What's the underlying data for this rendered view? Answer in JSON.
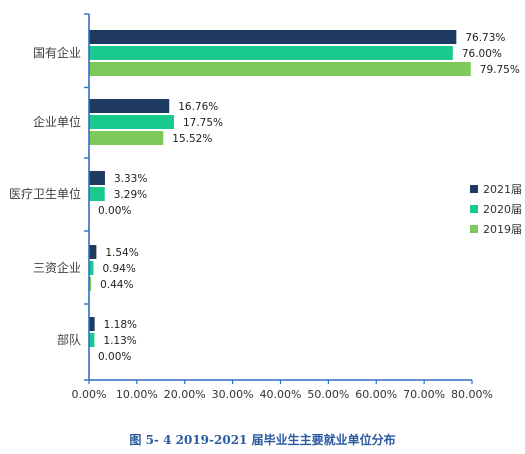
{
  "chart_data": {
    "type": "bar",
    "orientation": "horizontal",
    "categories": [
      "国有企业",
      "企业单位",
      "医疗卫生单位",
      "三资企业",
      "部队"
    ],
    "series": [
      {
        "name": "2021届",
        "color": "#1f3a60",
        "values": [
          76.73,
          16.76,
          3.33,
          1.54,
          1.18
        ],
        "labels": [
          "76.73%",
          "16.76%",
          "3.33%",
          "1.54%",
          "1.18%"
        ]
      },
      {
        "name": "2020届",
        "color": "#1ac98e",
        "values": [
          76.0,
          17.75,
          3.29,
          0.94,
          1.13
        ],
        "labels": [
          "76.00%",
          "17.75%",
          "3.29%",
          "0.94%",
          "1.13%"
        ]
      },
      {
        "name": "2019届",
        "color": "#7ec95a",
        "values": [
          79.75,
          15.52,
          0.0,
          0.44,
          0.0
        ],
        "labels": [
          "79.75%",
          "15.52%",
          "0.00%",
          "0.44%",
          "0.00%"
        ]
      }
    ],
    "xticks": [
      "0.00%",
      "10.00%",
      "20.00%",
      "30.00%",
      "40.00%",
      "50.00%",
      "60.00%",
      "70.00%",
      "80.00%"
    ],
    "xlim": [
      0,
      80
    ],
    "grid": false,
    "legend_position": "right",
    "axis_color": "#2e6fc0"
  },
  "caption": "图 5- 4    2019-2021 届毕业生主要就业单位分布"
}
